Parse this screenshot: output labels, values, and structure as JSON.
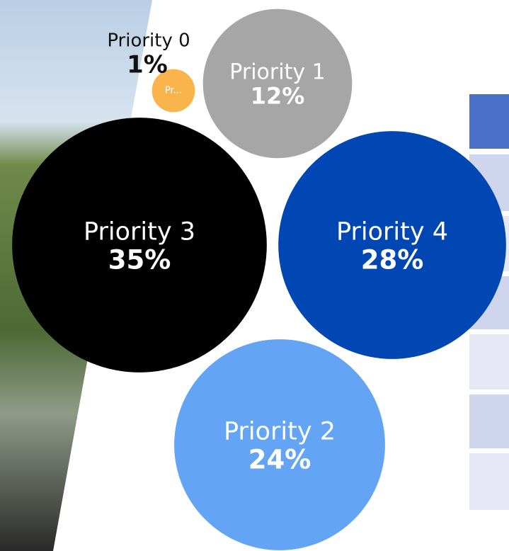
{
  "chart_data": {
    "type": "bubble",
    "categories": [
      "Priority 0",
      "Priority 1",
      "Priority 2",
      "Priority 3",
      "Priority 4"
    ],
    "values": [
      1,
      12,
      24,
      35,
      28
    ],
    "value_labels": [
      "1%",
      "12%",
      "24%",
      "35%",
      "28%"
    ],
    "colors": [
      "#f9b44c",
      "#a6a6a6",
      "#64a4f5",
      "#000000",
      "#0047b3"
    ],
    "annotations": [
      "Pr..."
    ]
  }
}
